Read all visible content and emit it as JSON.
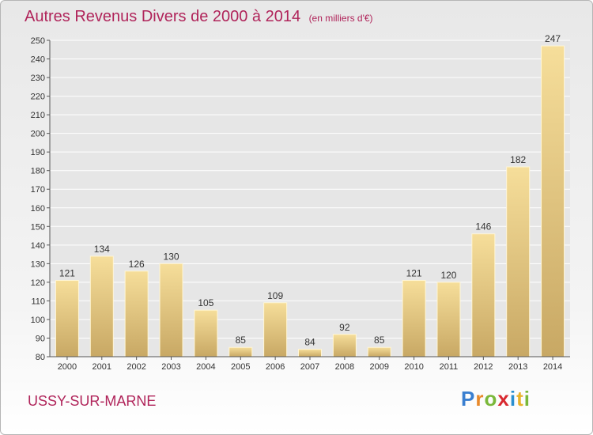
{
  "chart_data": {
    "type": "bar",
    "title": "Autres Revenus Divers de 2000 à 2014",
    "unit": "(en milliers d'€)",
    "categories": [
      "2000",
      "2001",
      "2002",
      "2003",
      "2004",
      "2005",
      "2006",
      "2007",
      "2008",
      "2009",
      "2010",
      "2011",
      "2012",
      "2013",
      "2014"
    ],
    "values": [
      121,
      134,
      126,
      130,
      105,
      85,
      109,
      84,
      92,
      85,
      121,
      120,
      146,
      182,
      247
    ],
    "ylim": [
      80,
      250
    ],
    "yticks": [
      80,
      90,
      100,
      110,
      120,
      130,
      140,
      150,
      160,
      170,
      180,
      190,
      200,
      210,
      220,
      230,
      240,
      250
    ],
    "grid": true
  },
  "place": "USSY-SUR-MARNE",
  "logo": "Proxiti",
  "colors": {
    "title": "#b0245a",
    "bar_light": "#f5dc96",
    "bar_dark": "#c8a864",
    "grid": "#ffffff"
  }
}
